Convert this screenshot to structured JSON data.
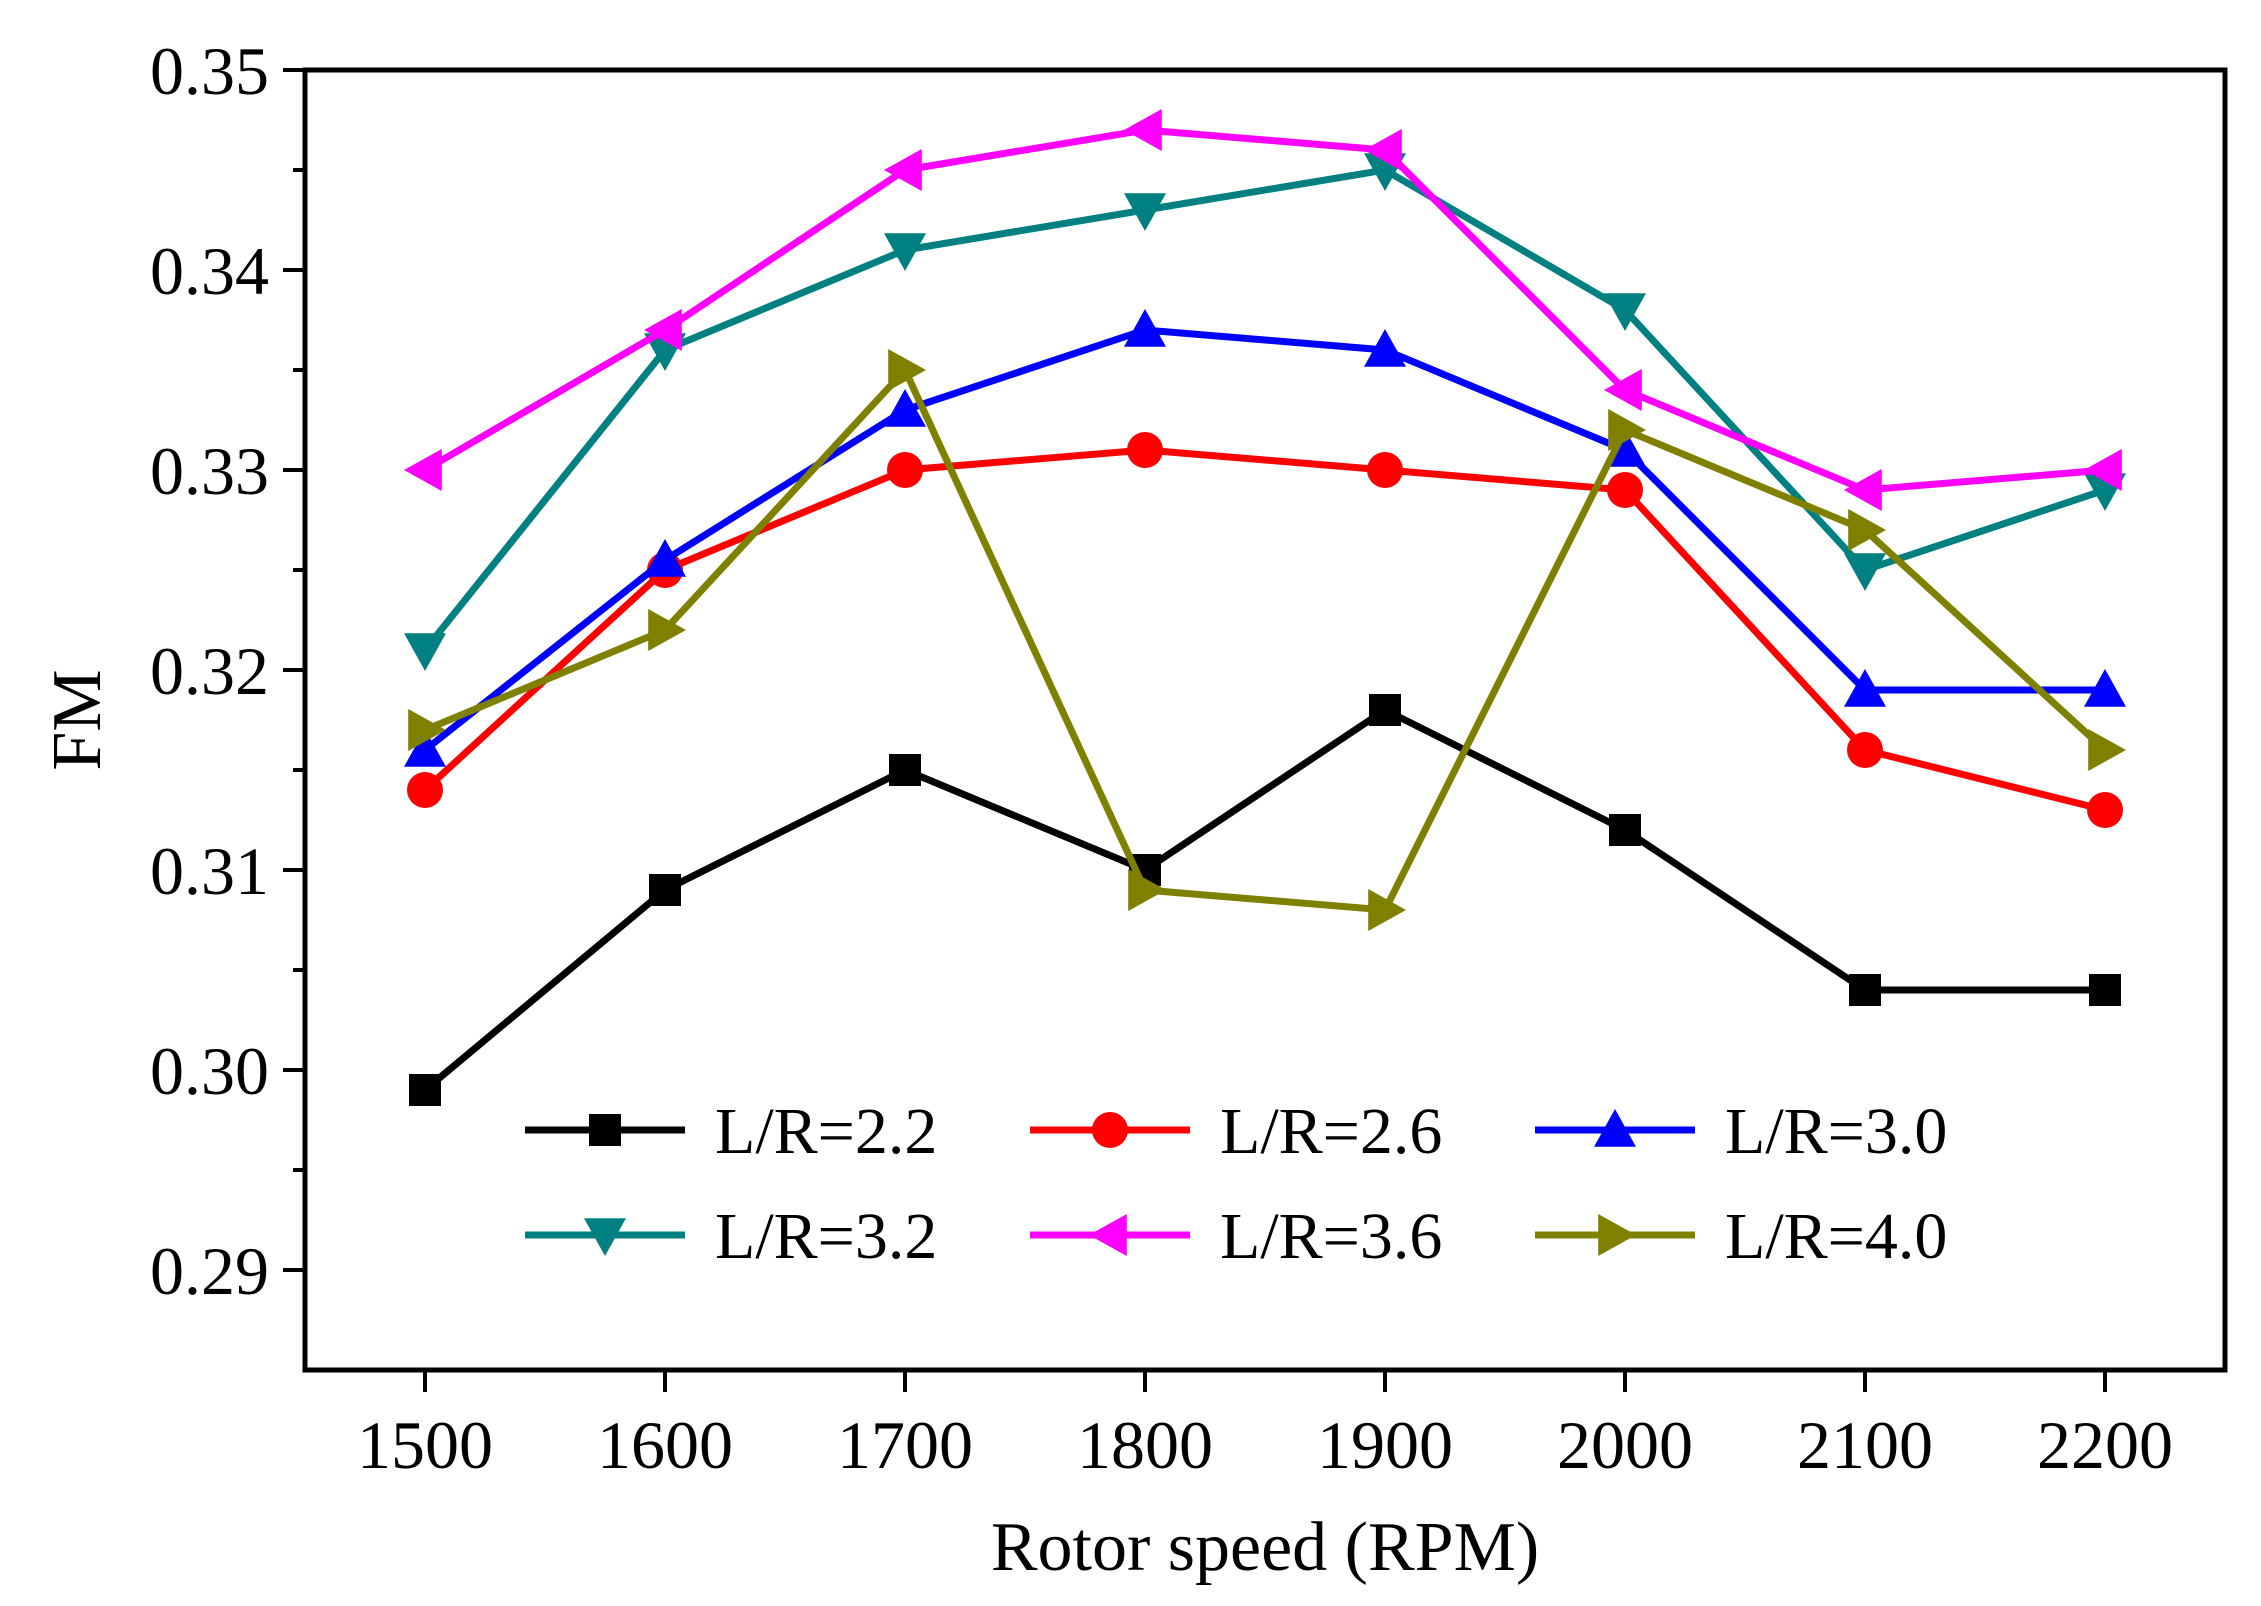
{
  "chart_data": {
    "type": "line",
    "title": "",
    "xlabel": "Rotor speed (RPM)",
    "ylabel": "FM",
    "x": [
      1500,
      1600,
      1700,
      1800,
      1900,
      2000,
      2100,
      2200
    ],
    "x_tick_labels": [
      "1500",
      "1600",
      "1700",
      "1800",
      "1900",
      "2000",
      "2100",
      "2200"
    ],
    "xlim": [
      1450,
      2250
    ],
    "ylim": [
      0.285,
      0.35
    ],
    "y_ticks": [
      0.29,
      0.3,
      0.31,
      0.32,
      0.33,
      0.34,
      0.35
    ],
    "y_tick_labels": [
      "0.29",
      "0.30",
      "0.31",
      "0.32",
      "0.33",
      "0.34",
      "0.35"
    ],
    "grid": false,
    "legend_position": "bottom-center",
    "series": [
      {
        "name": "L/R=2.2",
        "color": "#000000",
        "marker": "square",
        "values": [
          0.299,
          0.309,
          0.315,
          0.31,
          0.318,
          0.312,
          0.304,
          0.304
        ]
      },
      {
        "name": "L/R=2.6",
        "color": "#ff0000",
        "marker": "circle",
        "values": [
          0.314,
          0.325,
          0.33,
          0.331,
          0.33,
          0.329,
          0.316,
          0.313
        ]
      },
      {
        "name": "L/R=3.0",
        "color": "#0000ff",
        "marker": "triangle-up",
        "values": [
          0.316,
          0.3255,
          0.333,
          0.337,
          0.336,
          0.331,
          0.319,
          0.319
        ]
      },
      {
        "name": "L/R=3.2",
        "color": "#008080",
        "marker": "triangle-down",
        "values": [
          0.321,
          0.336,
          0.341,
          0.343,
          0.345,
          0.338,
          0.325,
          0.329
        ]
      },
      {
        "name": "L/R=3.6",
        "color": "#ff00ff",
        "marker": "triangle-left",
        "values": [
          0.33,
          0.337,
          0.345,
          0.347,
          0.346,
          0.334,
          0.329,
          0.33
        ]
      },
      {
        "name": "L/R=4.0",
        "color": "#808000",
        "marker": "triangle-right",
        "values": [
          0.317,
          0.322,
          0.335,
          0.309,
          0.308,
          0.332,
          0.327,
          0.316
        ]
      }
    ]
  }
}
